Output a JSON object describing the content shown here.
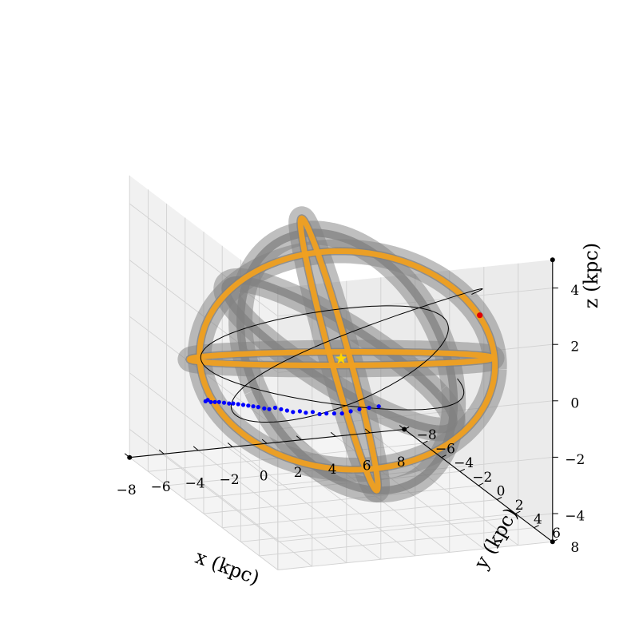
{
  "chart_data": {
    "type": "scatter",
    "projection": "3d",
    "grid": true,
    "title": "",
    "xlabel": "x (kpc)",
    "ylabel": "y (kpc)",
    "zlabel": "z (kpc)",
    "xlim": [
      -8,
      8
    ],
    "ylim": [
      -8,
      8
    ],
    "zlim": [
      -5,
      5
    ],
    "x_ticks": [
      "−8",
      "−6",
      "−4",
      "−2",
      "0",
      "2",
      "4",
      "6",
      "8"
    ],
    "y_ticks": [
      "−8",
      "−6",
      "−4",
      "−2",
      "0",
      "2",
      "4",
      "6",
      "8"
    ],
    "z_ticks": [
      "−4",
      "−2",
      "0",
      "2",
      "4"
    ],
    "colors": {
      "orbit_ensemble": "#808080",
      "orbit_highlight": "#f0a020",
      "orbit_reference": "#000000",
      "stream_stars": "#0000ff",
      "progenitor": "#e00000",
      "galactic_center_star": "#ffd700"
    },
    "series": [
      {
        "mark": "star-marker",
        "points": [
          {
            "x": 0,
            "y": 0,
            "z": 0
          }
        ]
      },
      {
        "mark": "red-point",
        "points": [
          {
            "x": 7.0,
            "y": 2.0,
            "z": 1.6
          }
        ]
      },
      {
        "mark": "blue-points",
        "points": [
          {
            "x": -6.6,
            "y": -2.4,
            "z": -1.7
          },
          {
            "x": -6.2,
            "y": -2.9,
            "z": -1.8
          },
          {
            "x": -5.8,
            "y": -3.3,
            "z": -2.0
          },
          {
            "x": -5.4,
            "y": -3.6,
            "z": -2.1
          },
          {
            "x": -5.0,
            "y": -3.9,
            "z": -2.2
          },
          {
            "x": -4.6,
            "y": -4.1,
            "z": -2.3
          },
          {
            "x": -4.2,
            "y": -4.3,
            "z": -2.4
          },
          {
            "x": -3.8,
            "y": -4.6,
            "z": -2.5
          },
          {
            "x": -3.4,
            "y": -4.8,
            "z": -2.6
          },
          {
            "x": -3.0,
            "y": -5.0,
            "z": -2.7
          },
          {
            "x": -2.6,
            "y": -5.2,
            "z": -2.8
          },
          {
            "x": -2.2,
            "y": -5.4,
            "z": -2.9
          },
          {
            "x": -1.8,
            "y": -5.6,
            "z": -3.0
          },
          {
            "x": -1.4,
            "y": -5.7,
            "z": -3.1
          },
          {
            "x": -1.0,
            "y": -5.9,
            "z": -3.2
          },
          {
            "x": -0.6,
            "y": -6.0,
            "z": -3.2
          },
          {
            "x": -0.2,
            "y": -6.1,
            "z": -3.3
          },
          {
            "x": 0.2,
            "y": -6.2,
            "z": -3.4
          },
          {
            "x": 0.6,
            "y": -6.3,
            "z": -3.5
          },
          {
            "x": 1.0,
            "y": -6.3,
            "z": -3.5
          },
          {
            "x": 1.4,
            "y": -6.4,
            "z": -3.6
          },
          {
            "x": 1.8,
            "y": -6.4,
            "z": -3.6
          },
          {
            "x": 2.2,
            "y": -6.4,
            "z": -3.7
          },
          {
            "x": 2.6,
            "y": -6.4,
            "z": -3.7
          },
          {
            "x": 3.0,
            "y": -6.3,
            "z": -3.7
          },
          {
            "x": 3.4,
            "y": -6.2,
            "z": -3.7
          },
          {
            "x": 3.8,
            "y": -6.0,
            "z": -3.6
          },
          {
            "x": 4.2,
            "y": -5.8,
            "z": -3.5
          },
          {
            "x": 4.6,
            "y": -5.5,
            "z": -3.4
          },
          {
            "x": 5.0,
            "y": -5.2,
            "z": -3.3
          }
        ]
      }
    ]
  }
}
